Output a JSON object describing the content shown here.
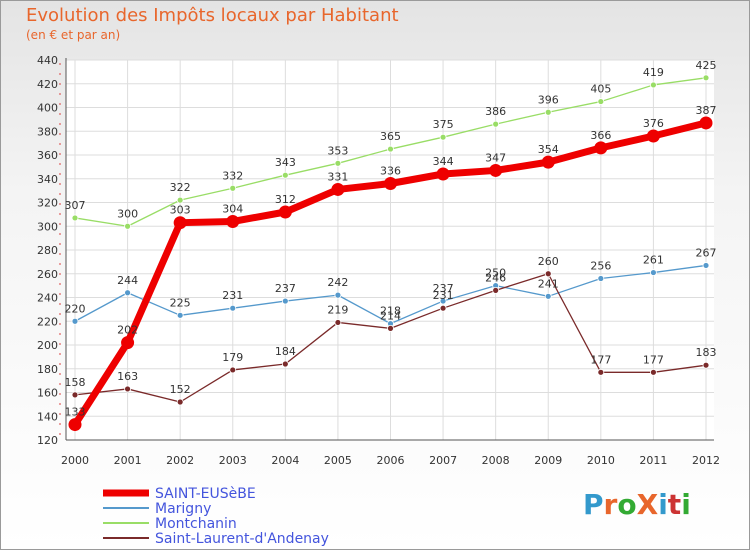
{
  "title": "Evolution des Impôts locaux par Habitant",
  "subtitle": "(en € et par an)",
  "logo": {
    "text": "ProXiti",
    "colors": [
      "#3399cc",
      "#e8662c",
      "#33aa33",
      "#e8662c",
      "#3399cc",
      "#cc3333",
      "#33aa33"
    ]
  },
  "chart_data": {
    "type": "line",
    "x": [
      "2000",
      "2001",
      "2002",
      "2003",
      "2004",
      "2005",
      "2006",
      "2007",
      "2008",
      "2009",
      "2010",
      "2011",
      "2012"
    ],
    "ylim": [
      120,
      440
    ],
    "yticks": [
      120,
      140,
      160,
      180,
      200,
      220,
      240,
      260,
      280,
      300,
      320,
      340,
      360,
      380,
      400,
      420,
      440
    ],
    "grid": true,
    "legend_position": "bottom-left",
    "series": [
      {
        "name": "SAINT-EUSèBE",
        "color": "#ee0000",
        "values": [
          133,
          202,
          303,
          304,
          312,
          331,
          336,
          344,
          347,
          354,
          366,
          376,
          387
        ]
      },
      {
        "name": "Marigny",
        "color": "#5599cc",
        "values": [
          220,
          244,
          225,
          231,
          237,
          242,
          218,
          237,
          250,
          241,
          256,
          261,
          267
        ]
      },
      {
        "name": "Montchanin",
        "color": "#99dd66",
        "values": [
          307,
          300,
          322,
          332,
          343,
          353,
          365,
          375,
          386,
          396,
          405,
          419,
          425
        ]
      },
      {
        "name": "Saint-Laurent-d'Andenay",
        "color": "#7a2a2a",
        "values": [
          158,
          163,
          152,
          179,
          184,
          219,
          214,
          231,
          246,
          260,
          177,
          177,
          183
        ]
      }
    ]
  }
}
